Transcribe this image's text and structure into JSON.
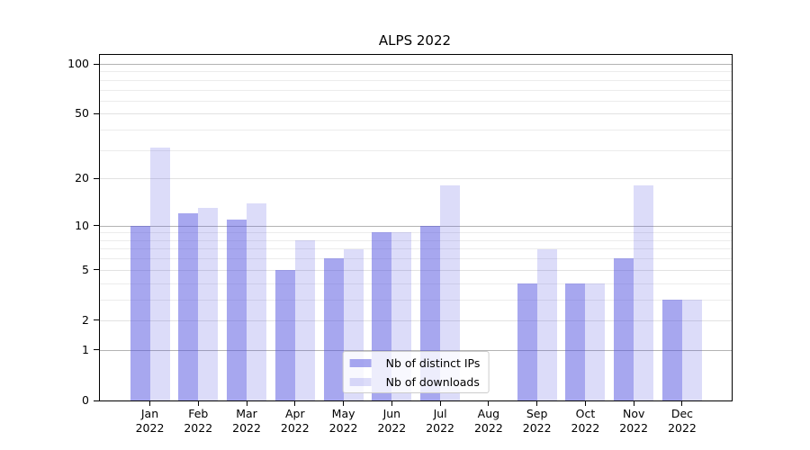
{
  "title": "ALPS 2022",
  "chart_data": {
    "type": "bar",
    "title": "ALPS 2022",
    "categories": [
      "Jan",
      "Feb",
      "Mar",
      "Apr",
      "May",
      "Jun",
      "Jul",
      "Aug",
      "Sep",
      "Oct",
      "Nov",
      "Dec"
    ],
    "category_year": "2022",
    "series": [
      {
        "key": "distinct-ips",
        "name": "Nb of distinct IPs",
        "color": "rgba(80,80,224,0.5)",
        "values": [
          10,
          12,
          11,
          5,
          6,
          9,
          10,
          0,
          4,
          4,
          6,
          3
        ]
      },
      {
        "key": "downloads",
        "name": "Nb of downloads",
        "color": "rgba(80,80,224,0.2)",
        "values": [
          31,
          13,
          14,
          8,
          7,
          9,
          18,
          0,
          7,
          4,
          18,
          3
        ]
      }
    ],
    "yscale": "log1p",
    "ylim": [
      0,
      100
    ],
    "y_labeled_ticks": [
      0,
      1,
      2,
      5,
      10,
      20,
      50,
      100
    ],
    "y_minor_ticks": [
      3,
      4,
      6,
      7,
      8,
      9,
      30,
      40,
      60,
      70,
      80,
      90
    ],
    "y_decade_ticks": [
      1,
      10,
      100
    ],
    "grid": true,
    "legend_position": "lower center",
    "colors": {
      "axis": "#000000",
      "grid_decade": "#b3b3b3",
      "grid_labeled": "#e2e2e2",
      "grid_minor": "#ececec"
    }
  }
}
